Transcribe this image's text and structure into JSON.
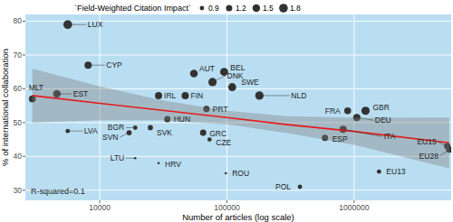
{
  "chart_data": {
    "type": "scatter",
    "x_label": "Number of articles (log scale)",
    "y_label": "% of international collaboration",
    "annotation": "R-squared=0.1",
    "size_title": "`Field-Weighted Citation Impact`",
    "size_ticks": [
      0.9,
      1.2,
      1.5,
      1.8
    ],
    "legend": "top",
    "log": "x",
    "grid": true,
    "color": "#333333",
    "xlim": [
      2600,
      5800000
    ],
    "xticks": [
      10000,
      100000,
      1000000
    ],
    "ylim": [
      27,
      82
    ],
    "yticks": [
      30,
      40,
      50,
      60,
      70,
      80
    ],
    "labels": [
      "LUX",
      "CYP",
      "EST",
      "MLT",
      "LVA",
      "BGR",
      "SVN",
      "SVK",
      "HUN",
      "PRT",
      "IRL",
      "FIN",
      "AUT",
      "BEL",
      "DNK",
      "SWE",
      "NLD",
      "GRC",
      "CZE",
      "LTU",
      "HRV",
      "ROU",
      "POL",
      "FRA",
      "GBR",
      "DEU",
      "ITA",
      "ESP",
      "EU15",
      "EU28",
      "EU13"
    ],
    "x": [
      5600,
      8100,
      4600,
      2950,
      5600,
      19000,
      17000,
      25000,
      34000,
      69000,
      29000,
      47000,
      55000,
      95000,
      77000,
      110000,
      180000,
      65000,
      73000,
      19000,
      29000,
      98000,
      375000,
      890000,
      1230000,
      1050000,
      820000,
      590000,
      5400000,
      5600000,
      1570000
    ],
    "values": [
      79,
      67,
      58.5,
      57,
      47.5,
      48.5,
      47,
      48.5,
      51,
      54,
      58,
      58,
      64.5,
      65,
      62,
      60.5,
      58,
      47,
      45,
      39.5,
      38,
      35,
      31,
      53.5,
      53.5,
      51.5,
      48,
      45.5,
      43,
      42,
      35.5
    ],
    "size": [
      1.8,
      1.4,
      1.5,
      1.3,
      0.9,
      0.9,
      1.0,
      1.0,
      1.2,
      1.2,
      1.4,
      1.4,
      1.5,
      1.6,
      1.7,
      1.6,
      1.7,
      1.2,
      0.9,
      0.8,
      0.8,
      0.8,
      0.9,
      1.3,
      1.7,
      1.4,
      1.4,
      1.2,
      1.2,
      1.2,
      0.9
    ],
    "trend": {
      "x": [
        2950,
        10000,
        30000,
        100000,
        300000,
        1000000,
        5600000
      ],
      "values": [
        58,
        55.7,
        53.7,
        51.5,
        49.4,
        47.4,
        44
      ],
      "color": "#e41a1c"
    },
    "band": {
      "x": [
        2950,
        10000,
        30000,
        100000,
        300000,
        1000000,
        5600000
      ],
      "lower": [
        50,
        50.7,
        50.7,
        49.5,
        46.9,
        43.4,
        36.5
      ],
      "upper": [
        66,
        60.7,
        56.7,
        53.5,
        51.9,
        51.4,
        51.5
      ],
      "color": "#7f7f7f"
    }
  }
}
